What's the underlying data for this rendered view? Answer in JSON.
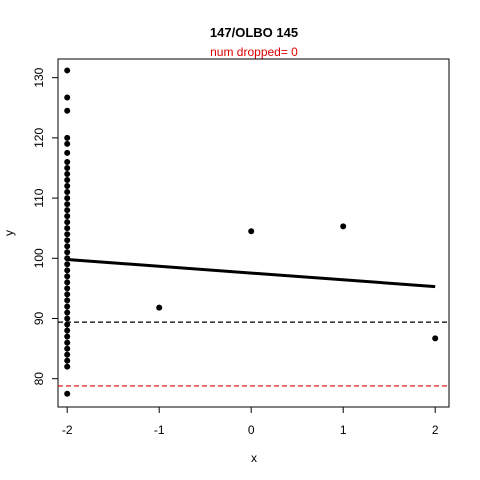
{
  "chart_data": {
    "type": "scatter",
    "title": "147/OLBO 145",
    "subtitle": "num dropped= 0",
    "xlabel": "x",
    "ylabel": "y",
    "xlim": [
      -2.1,
      2.15
    ],
    "ylim": [
      75.3,
      133.1
    ],
    "xticks": [
      -2,
      -1,
      0,
      1,
      2
    ],
    "xtick_labels": [
      "-2",
      "-1",
      "0",
      "1",
      "2"
    ],
    "yticks": [
      80,
      90,
      100,
      110,
      120,
      130
    ],
    "ytick_labels": [
      "80",
      "90",
      "100",
      "110",
      "120",
      "130"
    ],
    "grid": false,
    "points": [
      {
        "x": -2,
        "y": 131.2
      },
      {
        "x": -2,
        "y": 126.7
      },
      {
        "x": -2,
        "y": 124.5
      },
      {
        "x": -2,
        "y": 120.0
      },
      {
        "x": -2,
        "y": 119.0
      },
      {
        "x": -2,
        "y": 117.5
      },
      {
        "x": -2,
        "y": 116.0
      },
      {
        "x": -2,
        "y": 115.0
      },
      {
        "x": -2,
        "y": 114.0
      },
      {
        "x": -2,
        "y": 113.0
      },
      {
        "x": -2,
        "y": 112.0
      },
      {
        "x": -2,
        "y": 111.0
      },
      {
        "x": -2,
        "y": 110.0
      },
      {
        "x": -2,
        "y": 109.0
      },
      {
        "x": -2,
        "y": 108.0
      },
      {
        "x": -2,
        "y": 107.0
      },
      {
        "x": -2,
        "y": 106.0
      },
      {
        "x": -2,
        "y": 105.0
      },
      {
        "x": -2,
        "y": 104.0
      },
      {
        "x": -2,
        "y": 103.0
      },
      {
        "x": -2,
        "y": 102.0
      },
      {
        "x": -2,
        "y": 101.0
      },
      {
        "x": -2,
        "y": 100.0
      },
      {
        "x": -2,
        "y": 99.0
      },
      {
        "x": -2,
        "y": 98.0
      },
      {
        "x": -2,
        "y": 97.0
      },
      {
        "x": -2,
        "y": 96.0
      },
      {
        "x": -2,
        "y": 95.0
      },
      {
        "x": -2,
        "y": 94.0
      },
      {
        "x": -2,
        "y": 93.0
      },
      {
        "x": -2,
        "y": 92.0
      },
      {
        "x": -2,
        "y": 91.0
      },
      {
        "x": -2,
        "y": 90.0
      },
      {
        "x": -2,
        "y": 89.0
      },
      {
        "x": -2,
        "y": 88.0
      },
      {
        "x": -2,
        "y": 87.0
      },
      {
        "x": -2,
        "y": 86.0
      },
      {
        "x": -2,
        "y": 85.0
      },
      {
        "x": -2,
        "y": 84.0
      },
      {
        "x": -2,
        "y": 83.0
      },
      {
        "x": -2,
        "y": 82.0
      },
      {
        "x": -2,
        "y": 77.5
      },
      {
        "x": -1,
        "y": 91.8
      },
      {
        "x": 0,
        "y": 104.5
      },
      {
        "x": 1,
        "y": 105.3
      },
      {
        "x": 2,
        "y": 86.7
      }
    ],
    "regression_line": {
      "x": [
        -2,
        2
      ],
      "y": [
        99.8,
        95.3
      ],
      "color": "#000000"
    },
    "hlines": [
      {
        "y": 89.4,
        "color": "#000000",
        "style": "dashed"
      },
      {
        "y": 78.8,
        "color": "#dd0000",
        "style": "dashed"
      }
    ],
    "colors": {
      "points": "#000000",
      "subtitle": "#dd0000"
    }
  }
}
